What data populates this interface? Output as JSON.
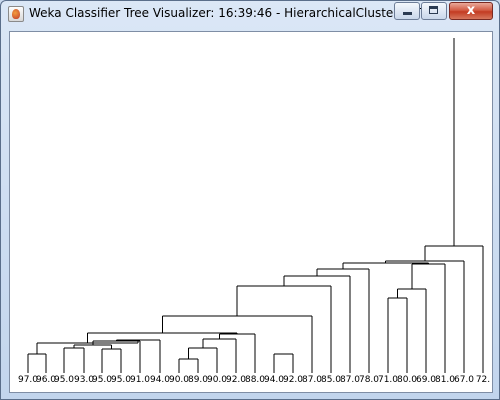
{
  "window": {
    "title": "Weka Classifier Tree Visualizer: 16:39:46 - HierarchicalClusterer (T...",
    "close_symbol": "x"
  },
  "tree": {
    "leaves": [
      "97.0",
      "96.0",
      "95.0",
      "93.0",
      "95.0",
      "95.0",
      "91.0",
      "94.0",
      "90.0",
      "89.0",
      "90.0",
      "92.0",
      "88.0",
      "94.0",
      "92.0",
      "87.0",
      "85.0",
      "87.0",
      "78.0",
      "71.0",
      "80.0",
      "69.0",
      "81.0",
      "67.0",
      "72."
    ]
  }
}
